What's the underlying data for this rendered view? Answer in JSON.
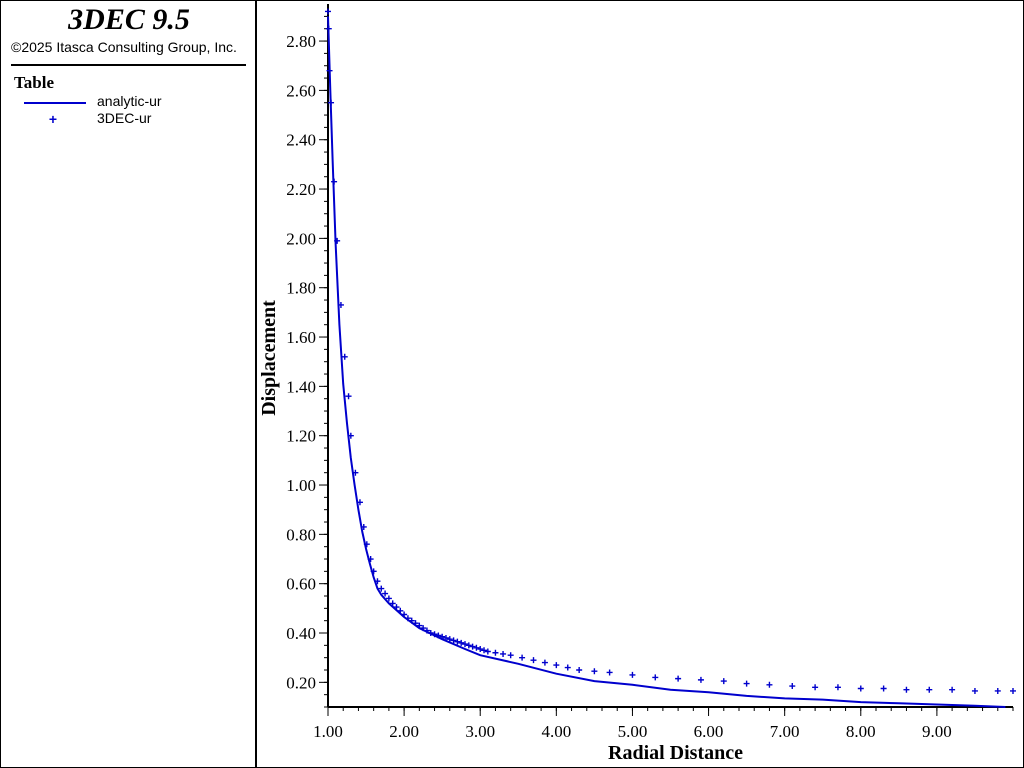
{
  "app": {
    "title": "3DEC 9.5",
    "copyright": "©2025 Itasca Consulting Group, Inc."
  },
  "legend": {
    "title": "Table",
    "items": [
      {
        "label": "analytic-ur",
        "style": "line",
        "icon": "line-swatch"
      },
      {
        "label": "3DEC-ur",
        "style": "marker",
        "icon": "plus-marker"
      }
    ]
  },
  "colors": {
    "series": "#0000cd",
    "axis": "#000000",
    "background": "#ffffff"
  },
  "chart_data": {
    "type": "line",
    "title": "",
    "xlabel": "Radial Distance",
    "ylabel": "Displacement",
    "xlim": [
      1.0,
      10.0
    ],
    "ylim": [
      0.1,
      2.93
    ],
    "xticks": [
      "1.00",
      "2.00",
      "3.00",
      "4.00",
      "5.00",
      "6.00",
      "7.00",
      "8.00",
      "9.00"
    ],
    "yticks": [
      "0.20",
      "0.40",
      "0.60",
      "0.80",
      "1.00",
      "1.20",
      "1.40",
      "1.60",
      "1.80",
      "2.00",
      "2.20",
      "2.40",
      "2.60",
      "2.80"
    ],
    "grid": false,
    "legend_position": "left panel",
    "series": [
      {
        "name": "analytic-ur",
        "style": "line",
        "x": [
          1.0,
          1.03,
          1.06,
          1.1,
          1.15,
          1.2,
          1.25,
          1.3,
          1.35,
          1.4,
          1.45,
          1.5,
          1.55,
          1.6,
          1.65,
          1.7,
          1.8,
          2.0,
          2.2,
          2.5,
          2.8,
          3.0,
          3.5,
          4.0,
          4.5,
          5.0,
          5.5,
          6.0,
          6.5,
          7.0,
          7.5,
          8.0,
          8.5,
          9.0,
          9.5,
          9.9
        ],
        "y": [
          2.9,
          2.6,
          2.32,
          1.98,
          1.65,
          1.41,
          1.25,
          1.11,
          1.0,
          0.9,
          0.81,
          0.74,
          0.68,
          0.625,
          0.58,
          0.555,
          0.52,
          0.465,
          0.42,
          0.375,
          0.335,
          0.31,
          0.275,
          0.235,
          0.205,
          0.19,
          0.17,
          0.16,
          0.145,
          0.135,
          0.13,
          0.12,
          0.115,
          0.11,
          0.105,
          0.1
        ]
      },
      {
        "name": "3DEC-ur",
        "style": "marker",
        "x": [
          1.0,
          1.01,
          1.02,
          1.04,
          1.08,
          1.12,
          1.17,
          1.22,
          1.27,
          1.3,
          1.36,
          1.42,
          1.47,
          1.51,
          1.56,
          1.6,
          1.65,
          1.7,
          1.75,
          1.8,
          1.85,
          1.9,
          1.95,
          2.0,
          2.05,
          2.1,
          2.15,
          2.2,
          2.25,
          2.3,
          2.35,
          2.4,
          2.45,
          2.5,
          2.55,
          2.6,
          2.65,
          2.7,
          2.75,
          2.8,
          2.85,
          2.9,
          2.95,
          3.0,
          3.05,
          3.1,
          3.2,
          3.3,
          3.4,
          3.55,
          3.7,
          3.85,
          4.0,
          4.15,
          4.3,
          4.5,
          4.7,
          5.0,
          5.3,
          5.6,
          5.9,
          6.2,
          6.5,
          6.8,
          7.1,
          7.4,
          7.7,
          8.0,
          8.3,
          8.6,
          8.9,
          9.2,
          9.5,
          9.8,
          10.0
        ],
        "y": [
          2.92,
          2.85,
          2.68,
          2.55,
          2.23,
          1.99,
          1.73,
          1.52,
          1.36,
          1.2,
          1.05,
          0.93,
          0.83,
          0.76,
          0.7,
          0.65,
          0.61,
          0.58,
          0.56,
          0.54,
          0.52,
          0.505,
          0.49,
          0.475,
          0.46,
          0.45,
          0.44,
          0.43,
          0.42,
          0.41,
          0.4,
          0.395,
          0.39,
          0.385,
          0.38,
          0.375,
          0.37,
          0.365,
          0.36,
          0.355,
          0.35,
          0.345,
          0.34,
          0.335,
          0.33,
          0.325,
          0.32,
          0.315,
          0.31,
          0.3,
          0.29,
          0.28,
          0.27,
          0.26,
          0.25,
          0.245,
          0.24,
          0.23,
          0.22,
          0.215,
          0.21,
          0.205,
          0.195,
          0.19,
          0.185,
          0.18,
          0.18,
          0.175,
          0.175,
          0.17,
          0.17,
          0.17,
          0.165,
          0.165,
          0.165
        ]
      }
    ]
  }
}
